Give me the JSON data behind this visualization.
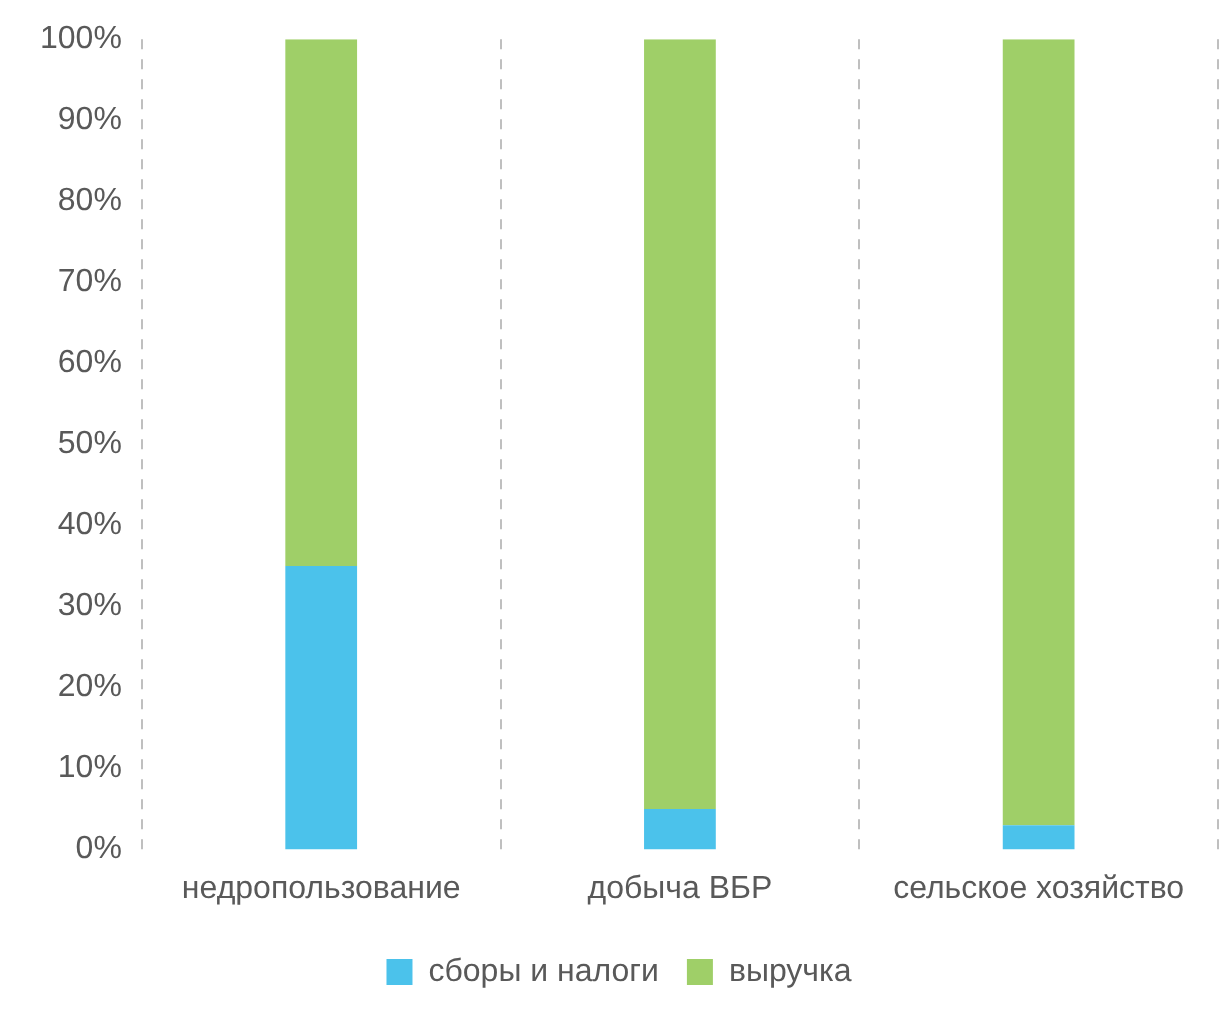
{
  "chart_data": {
    "type": "bar",
    "stacked": true,
    "categories": [
      "недропользование",
      "добыча ВБР",
      "сельское хозяйство"
    ],
    "series": [
      {
        "name": "сборы и налоги",
        "color": "#4bc2eb",
        "values": [
          35,
          5,
          3
        ]
      },
      {
        "name": "выручка",
        "color": "#9fcf68",
        "values": [
          65,
          95,
          97
        ]
      }
    ],
    "ylim": [
      0,
      100
    ],
    "yticks": [
      {
        "value": 0,
        "label": "0%"
      },
      {
        "value": 10,
        "label": "10%"
      },
      {
        "value": 20,
        "label": "20%"
      },
      {
        "value": 30,
        "label": "30%"
      },
      {
        "value": 40,
        "label": "40%"
      },
      {
        "value": 50,
        "label": "50%"
      },
      {
        "value": 60,
        "label": "60%"
      },
      {
        "value": 70,
        "label": "70%"
      },
      {
        "value": 80,
        "label": "80%"
      },
      {
        "value": 90,
        "label": "90%"
      },
      {
        "value": 100,
        "label": "100%"
      }
    ],
    "grid": "x",
    "legend": "bottom"
  }
}
